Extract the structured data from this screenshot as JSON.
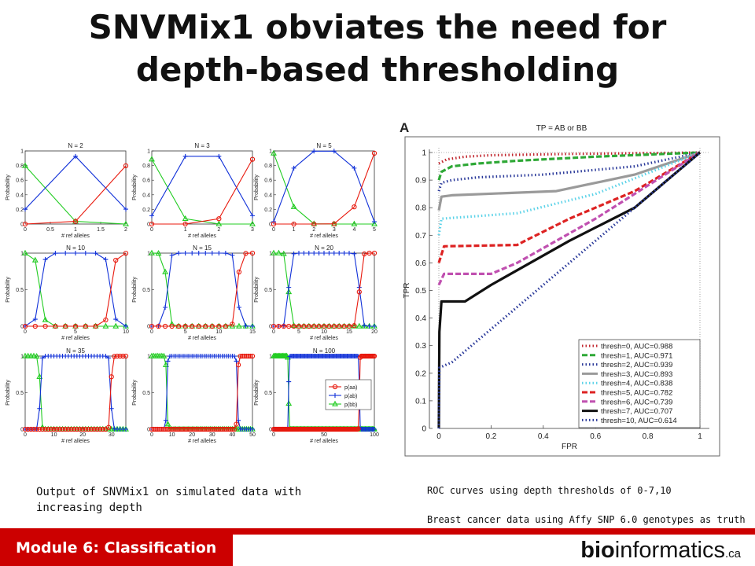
{
  "slide": {
    "title_line1": "SNVMix1 obviates the need for",
    "title_line2": "depth-based thresholding",
    "corner_letter": "A",
    "caption_left": "Output of SNVMix1 on simulated data with increasing depth",
    "caption_roc_1": "ROC curves using depth thresholds of 0-7,10",
    "caption_roc_2": "Breast cancer data using Affy SNP 6.0 genotypes as truth",
    "footer_module": "Module 6: Classification",
    "footer_brand_bold": "bio",
    "footer_brand_rest": "informatics",
    "footer_brand_suffix": ".ca",
    "footer_color": "#cc0000"
  },
  "chart_data": [
    {
      "type": "line",
      "panel": "simulated-grid",
      "xlabel": "# ref alleles",
      "ylabel": "Probability",
      "series_colors": {
        "p(aa)": "#e8180c",
        "p(ab)": "#1030d8",
        "p(bb)": "#22cc22"
      },
      "legend": [
        "p(aa)",
        "p(ab)",
        "p(bb)"
      ],
      "legend_position": "bottom-right of last panel",
      "panels": [
        {
          "title": "N = 2",
          "xlim": [
            0,
            2
          ],
          "xticks": [
            0,
            0.5,
            1,
            1.5,
            2
          ],
          "yticks": [
            0,
            0.2,
            0.4,
            0.6,
            0.8,
            1
          ]
        },
        {
          "title": "N = 3",
          "xlim": [
            0,
            3
          ],
          "xticks": [
            0,
            1,
            2,
            3
          ],
          "yticks": [
            0,
            0.2,
            0.4,
            0.6,
            0.8,
            1
          ]
        },
        {
          "title": "N = 5",
          "xlim": [
            0,
            5
          ],
          "xticks": [
            0,
            1,
            2,
            3,
            4,
            5
          ],
          "yticks": [
            0,
            0.2,
            0.4,
            0.6,
            0.8,
            1
          ]
        },
        {
          "title": "N = 10",
          "xlim": [
            0,
            10
          ],
          "xticks": [
            0,
            5,
            10
          ],
          "yticks": [
            0,
            0.5,
            1
          ]
        },
        {
          "title": "N = 15",
          "xlim": [
            0,
            15
          ],
          "xticks": [
            0,
            5,
            10,
            15
          ],
          "yticks": [
            0,
            0.5,
            1
          ]
        },
        {
          "title": "N = 20",
          "xlim": [
            0,
            20
          ],
          "xticks": [
            0,
            5,
            10,
            15,
            20
          ],
          "yticks": [
            0,
            0.5,
            1
          ]
        },
        {
          "title": "N = 35",
          "xlim": [
            0,
            35
          ],
          "xticks": [
            0,
            10,
            20,
            30
          ],
          "yticks": [
            0,
            0.5,
            1
          ]
        },
        {
          "title": "",
          "xlim": [
            0,
            50
          ],
          "xticks": [
            0,
            10,
            20,
            30,
            40,
            50
          ],
          "yticks": [
            0,
            0.5,
            1
          ]
        },
        {
          "title": "N = 100",
          "xlim": [
            0,
            100
          ],
          "xticks": [
            0,
            50,
            100
          ],
          "yticks": [
            0,
            0.5,
            1
          ]
        }
      ]
    },
    {
      "type": "line",
      "panel": "roc",
      "title": "TP = AB or BB",
      "xlabel": "FPR",
      "ylabel": "TPR",
      "xlim": [
        0,
        1
      ],
      "ylim": [
        0,
        1
      ],
      "xticks": [
        0,
        0.2,
        0.4,
        0.6,
        0.8,
        1
      ],
      "yticks": [
        0,
        0.1,
        0.2,
        0.3,
        0.4,
        0.5,
        0.6,
        0.7,
        0.8,
        0.9,
        1
      ],
      "legend_position": "bottom-right",
      "series": [
        {
          "name": "thresh=0, AUC=0.988",
          "color": "#c0242c",
          "dash": "dot",
          "points": [
            [
              0,
              0.96
            ],
            [
              0.03,
              0.975
            ],
            [
              0.1,
              0.985
            ],
            [
              0.2,
              0.99
            ],
            [
              0.5,
              0.995
            ],
            [
              1,
              1
            ]
          ]
        },
        {
          "name": "thresh=1, AUC=0.971",
          "color": "#2ea836",
          "dash": "dash",
          "points": [
            [
              0,
              0.9
            ],
            [
              0.01,
              0.93
            ],
            [
              0.05,
              0.95
            ],
            [
              0.15,
              0.96
            ],
            [
              0.3,
              0.97
            ],
            [
              0.6,
              0.985
            ],
            [
              1,
              1
            ]
          ]
        },
        {
          "name": "thresh=2, AUC=0.939",
          "color": "#2b3a9a",
          "dash": "dot",
          "points": [
            [
              0,
              0.86
            ],
            [
              0.01,
              0.89
            ],
            [
              0.05,
              0.9
            ],
            [
              0.15,
              0.91
            ],
            [
              0.4,
              0.92
            ],
            [
              0.75,
              0.95
            ],
            [
              1,
              1
            ]
          ]
        },
        {
          "name": "thresh=3, AUC=0.893",
          "color": "#9a9a9a",
          "dash": "solid",
          "points": [
            [
              0,
              0.79
            ],
            [
              0.01,
              0.84
            ],
            [
              0.05,
              0.845
            ],
            [
              0.45,
              0.86
            ],
            [
              0.55,
              0.88
            ],
            [
              0.75,
              0.92
            ],
            [
              1,
              1
            ]
          ]
        },
        {
          "name": "thresh=4, AUC=0.838",
          "color": "#5ad2e8",
          "dash": "dot",
          "points": [
            [
              0,
              0.7
            ],
            [
              0.01,
              0.76
            ],
            [
              0.3,
              0.78
            ],
            [
              0.6,
              0.85
            ],
            [
              1,
              1
            ]
          ]
        },
        {
          "name": "thresh=5, AUC=0.782",
          "color": "#dd2222",
          "dash": "dash",
          "points": [
            [
              0,
              0.6
            ],
            [
              0.02,
              0.66
            ],
            [
              0.3,
              0.665
            ],
            [
              0.33,
              0.68
            ],
            [
              0.5,
              0.76
            ],
            [
              0.75,
              0.86
            ],
            [
              1,
              1
            ]
          ]
        },
        {
          "name": "thresh=6, AUC=0.739",
          "color": "#c050b0",
          "dash": "dash",
          "points": [
            [
              0,
              0.52
            ],
            [
              0.02,
              0.56
            ],
            [
              0.2,
              0.56
            ],
            [
              0.3,
              0.6
            ],
            [
              0.6,
              0.76
            ],
            [
              1,
              1
            ]
          ]
        },
        {
          "name": "thresh=7, AUC=0.707",
          "color": "#111111",
          "dash": "solid",
          "points": [
            [
              0,
              0.0
            ],
            [
              0.002,
              0.35
            ],
            [
              0.01,
              0.46
            ],
            [
              0.1,
              0.46
            ],
            [
              0.2,
              0.52
            ],
            [
              0.5,
              0.68
            ],
            [
              0.75,
              0.8
            ],
            [
              1,
              1
            ]
          ]
        },
        {
          "name": "thresh=10, AUC=0.614",
          "color": "#2b3a9a",
          "dash": "dot",
          "points": [
            [
              0,
              0.0
            ],
            [
              0.002,
              0.22
            ],
            [
              0.05,
              0.24
            ],
            [
              0.5,
              0.6
            ],
            [
              1,
              1
            ]
          ]
        }
      ]
    }
  ]
}
